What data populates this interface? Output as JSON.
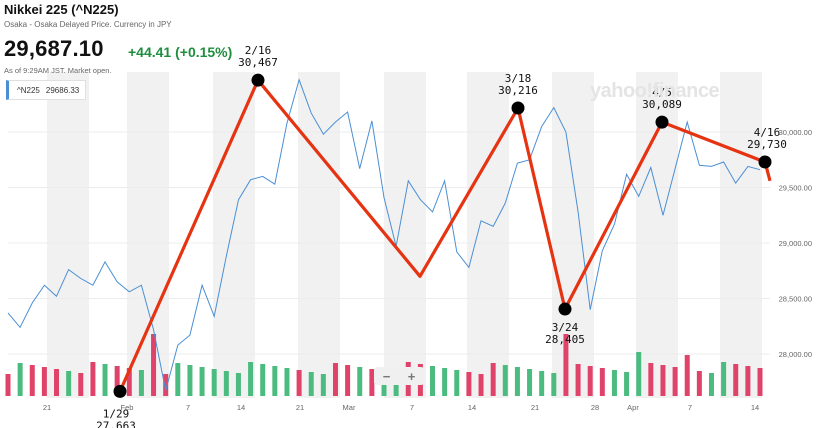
{
  "header": {
    "title": "Nikkei 225 (^N225)",
    "subtitle": "Osaka - Osaka Delayed Price. Currency in JPY",
    "price": "29,687.10",
    "change": "+44.41 (+0.15%)",
    "as_of": "As of 9:29AM JST. Market open."
  },
  "legend": {
    "symbol": "^N225",
    "value": "29686.33"
  },
  "watermark": "yahoo!finance",
  "zoom": {
    "minus": "−",
    "plus": "+"
  },
  "colors": {
    "price_line": "#4a8fd4",
    "overlay_line": "#e63312",
    "volume_up": "#4cbb7f",
    "volume_down": "#e0436a",
    "weekend_band": "#f1f1f1"
  },
  "chart_data": {
    "type": "line",
    "x_ticks": [
      "21",
      "Feb",
      "7",
      "14",
      "21",
      "Mar",
      "7",
      "14",
      "21",
      "28",
      "Apr",
      "7",
      "14"
    ],
    "y_ticks": [
      "30,000.00",
      "29,500.00",
      "29,000.00",
      "28,500.00",
      "28,000.00"
    ],
    "ylim": [
      27600,
      30500
    ],
    "price_series": [
      28370,
      28240,
      28460,
      28620,
      28520,
      28760,
      28680,
      28620,
      28830,
      28650,
      28560,
      28620,
      28220,
      27670,
      28080,
      28170,
      28620,
      28340,
      28880,
      29390,
      29570,
      29600,
      29530,
      30080,
      30470,
      30170,
      29980,
      30090,
      30180,
      29670,
      30100,
      29410,
      28970,
      29560,
      29390,
      29280,
      29560,
      28920,
      28780,
      29200,
      29150,
      29360,
      29720,
      29750,
      30050,
      30220,
      30000,
      29280,
      28400,
      28930,
      29170,
      29620,
      29420,
      29680,
      29250,
      29670,
      30090,
      29700,
      29690,
      29730,
      29540,
      29690,
      29660
    ],
    "volume_pattern": [
      "d",
      "u",
      "d",
      "d",
      "d",
      "u",
      "d",
      "d",
      "u",
      "d",
      "d",
      "u",
      "d",
      "d",
      "u",
      "u",
      "u",
      "u",
      "u",
      "u",
      "u",
      "u",
      "u",
      "u",
      "d",
      "u",
      "u",
      "d",
      "d",
      "u",
      "d",
      "u",
      "u",
      "d",
      "d",
      "u",
      "u",
      "u",
      "d",
      "d",
      "d",
      "u",
      "u",
      "u",
      "u",
      "u",
      "d",
      "d",
      "d",
      "d",
      "u",
      "u",
      "u",
      "d",
      "d",
      "d",
      "d",
      "d",
      "u",
      "u",
      "d",
      "d",
      "d"
    ],
    "annotations": [
      {
        "date": "1/29",
        "value": 27663,
        "label_date": "1/29",
        "label_value": "27,663"
      },
      {
        "date": "2/16",
        "value": 30467,
        "label_date": "2/16",
        "label_value": "30,467"
      },
      {
        "date": "3/9",
        "value": 28700,
        "label_date": "",
        "label_value": ""
      },
      {
        "date": "3/18",
        "value": 30216,
        "label_date": "3/18",
        "label_value": "30,216"
      },
      {
        "date": "3/24",
        "value": 28405,
        "label_date": "3/24",
        "label_value": "28,405"
      },
      {
        "date": "4/5",
        "value": 30089,
        "label_date": "4/5",
        "label_value": "30,089"
      },
      {
        "date": "4/16",
        "value": 29730,
        "label_date": "4/16",
        "label_value": "29,730"
      }
    ]
  }
}
